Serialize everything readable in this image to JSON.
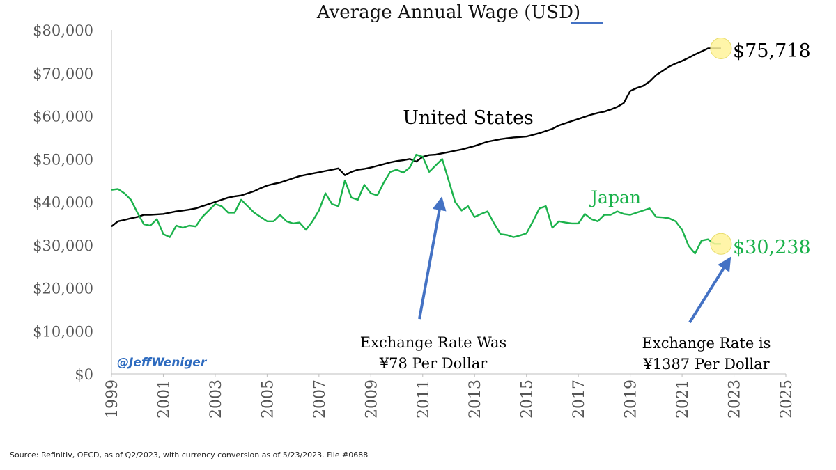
{
  "chart_data": {
    "type": "line",
    "title": "Average Annual Wage (USD)",
    "xlabel": "",
    "ylabel": "",
    "xlim": [
      1999,
      2025
    ],
    "ylim": [
      0,
      80000
    ],
    "x_ticks": [
      "1999",
      "2001",
      "2003",
      "2005",
      "2007",
      "2009",
      "2011",
      "2013",
      "2015",
      "2017",
      "2019",
      "2021",
      "2023",
      "2025"
    ],
    "y_ticks": [
      "$0",
      "$10,000",
      "$20,000",
      "$30,000",
      "$40,000",
      "$50,000",
      "$60,000",
      "$70,000",
      "$80,000"
    ],
    "grid": false,
    "series": [
      {
        "name": "United States",
        "color": "#000000",
        "x": [
          1999.0,
          1999.25,
          1999.5,
          1999.75,
          2000.0,
          2000.25,
          2000.5,
          2000.75,
          2001.0,
          2001.25,
          2001.5,
          2001.75,
          2002.0,
          2002.25,
          2002.5,
          2002.75,
          2003.0,
          2003.25,
          2003.5,
          2003.75,
          2004.0,
          2004.25,
          2004.5,
          2004.75,
          2005.0,
          2005.25,
          2005.5,
          2005.75,
          2006.0,
          2006.25,
          2006.5,
          2006.75,
          2007.0,
          2007.25,
          2007.5,
          2007.75,
          2008.0,
          2008.25,
          2008.5,
          2008.75,
          2009.0,
          2009.25,
          2009.5,
          2009.75,
          2010.0,
          2010.25,
          2010.5,
          2010.75,
          2011.0,
          2011.25,
          2011.5,
          2011.75,
          2012.0,
          2012.25,
          2012.5,
          2012.75,
          2013.0,
          2013.25,
          2013.5,
          2013.75,
          2014.0,
          2014.25,
          2014.5,
          2014.75,
          2015.0,
          2015.25,
          2015.5,
          2015.75,
          2016.0,
          2016.25,
          2016.5,
          2016.75,
          2017.0,
          2017.25,
          2017.5,
          2017.75,
          2018.0,
          2018.25,
          2018.5,
          2018.75,
          2019.0,
          2019.25,
          2019.5,
          2019.75,
          2020.0,
          2020.25,
          2020.5,
          2020.75,
          2021.0,
          2021.25,
          2021.5,
          2021.75,
          2022.0,
          2022.25,
          2022.5
        ],
        "values": [
          34300,
          35500,
          35800,
          36200,
          36500,
          37000,
          37000,
          37100,
          37200,
          37500,
          37800,
          38000,
          38200,
          38500,
          39000,
          39500,
          40000,
          40500,
          41000,
          41300,
          41500,
          42000,
          42500,
          43200,
          43800,
          44200,
          44500,
          45000,
          45500,
          46000,
          46300,
          46600,
          46900,
          47200,
          47500,
          47800,
          46200,
          47000,
          47500,
          47700,
          48000,
          48400,
          48800,
          49200,
          49500,
          49700,
          50000,
          49400,
          50500,
          50900,
          51000,
          51300,
          51600,
          51900,
          52200,
          52600,
          53000,
          53500,
          54000,
          54300,
          54600,
          54800,
          55000,
          55100,
          55200,
          55600,
          56000,
          56500,
          57000,
          57800,
          58300,
          58800,
          59300,
          59800,
          60300,
          60700,
          61000,
          61500,
          62100,
          63000,
          65800,
          66500,
          67000,
          68000,
          69500,
          70500,
          71500,
          72200,
          72800,
          73500,
          74300,
          75000,
          75718,
          75718,
          75718
        ]
      },
      {
        "name": "Japan",
        "color": "#1bb24b",
        "x": [
          1999.0,
          1999.25,
          1999.5,
          1999.75,
          2000.0,
          2000.25,
          2000.5,
          2000.75,
          2001.0,
          2001.25,
          2001.5,
          2001.75,
          2002.0,
          2002.25,
          2002.5,
          2002.75,
          2003.0,
          2003.25,
          2003.5,
          2003.75,
          2004.0,
          2004.25,
          2004.5,
          2004.75,
          2005.0,
          2005.25,
          2005.5,
          2005.75,
          2006.0,
          2006.25,
          2006.5,
          2006.75,
          2007.0,
          2007.25,
          2007.5,
          2007.75,
          2008.0,
          2008.25,
          2008.5,
          2008.75,
          2009.0,
          2009.25,
          2009.5,
          2009.75,
          2010.0,
          2010.25,
          2010.5,
          2010.75,
          2011.0,
          2011.25,
          2011.5,
          2011.75,
          2012.0,
          2012.25,
          2012.5,
          2012.75,
          2013.0,
          2013.25,
          2013.5,
          2013.75,
          2014.0,
          2014.25,
          2014.5,
          2014.75,
          2015.0,
          2015.25,
          2015.5,
          2015.75,
          2016.0,
          2016.25,
          2016.5,
          2016.75,
          2017.0,
          2017.25,
          2017.5,
          2017.75,
          2018.0,
          2018.25,
          2018.5,
          2018.75,
          2019.0,
          2019.25,
          2019.5,
          2019.75,
          2020.0,
          2020.25,
          2020.5,
          2020.75,
          2021.0,
          2021.25,
          2021.5,
          2021.75,
          2022.0,
          2022.25,
          2022.5
        ],
        "values": [
          42800,
          43000,
          42000,
          40500,
          37500,
          34800,
          34500,
          36000,
          32500,
          31800,
          34500,
          34000,
          34500,
          34300,
          36500,
          38000,
          39500,
          39000,
          37500,
          37500,
          40500,
          39000,
          37500,
          36500,
          35500,
          35500,
          37000,
          35500,
          35000,
          35200,
          33500,
          35500,
          38000,
          42000,
          39500,
          39000,
          45000,
          41000,
          40500,
          44000,
          42000,
          41500,
          44500,
          47000,
          47500,
          46800,
          48000,
          51000,
          50500,
          47000,
          48500,
          50000,
          45000,
          40000,
          38000,
          39000,
          36500,
          37200,
          37800,
          35000,
          32500,
          32300,
          31800,
          32200,
          32700,
          35500,
          38500,
          39000,
          34000,
          35500,
          35200,
          35000,
          35000,
          37200,
          36000,
          35500,
          37000,
          37000,
          37800,
          37200,
          37000,
          37500,
          38000,
          38500,
          36500,
          36400,
          36200,
          35500,
          33500,
          29800,
          28000,
          31000,
          31300,
          30238,
          30238
        ]
      }
    ],
    "annotations": [
      {
        "text": "United States",
        "color": "#000000"
      },
      {
        "text": "Japan",
        "color": "#1bb24b"
      },
      {
        "text": "$75,718",
        "color": "#000000"
      },
      {
        "text": "$30,238",
        "color": "#1bb24b"
      },
      {
        "text_lines": [
          "Exchange Rate Was",
          "¥78 Per Dollar"
        ],
        "color": "#000000",
        "arrow_color": "#4472c4",
        "points_to_x": 2011.8
      },
      {
        "text_lines": [
          "Exchange Rate is",
          "¥1387 Per Dollar"
        ],
        "color": "#000000",
        "arrow_color": "#4472c4",
        "points_to_x": 2022.8
      }
    ],
    "watermark": "@JeffWeniger",
    "source": "Source: Refinitiv, OECD, as of Q2/2023, with currency conversion as of 5/23/2023. File #0688"
  }
}
